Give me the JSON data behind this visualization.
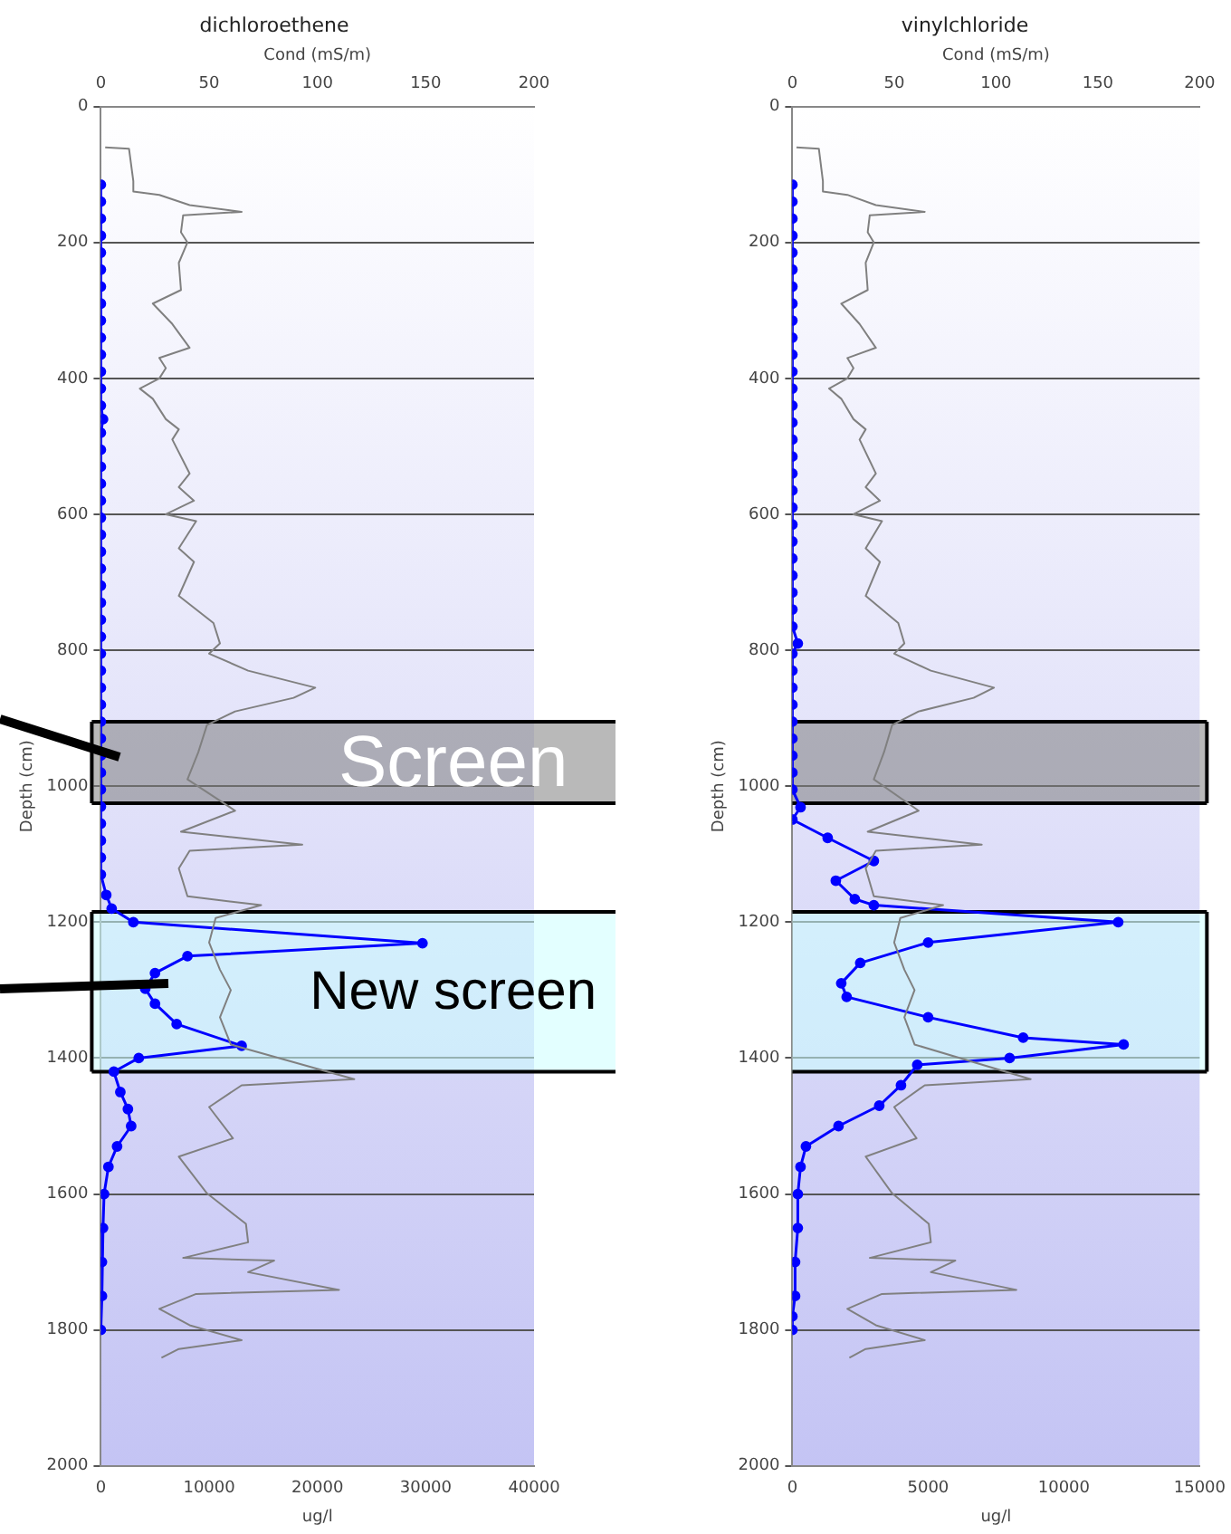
{
  "chart_data": [
    {
      "type": "line",
      "title": "dichloroethene",
      "xlabel": "ug/l",
      "x2label": "Cond (mS/m)",
      "ylabel": "Depth (cm)",
      "xlim": [
        0,
        40000
      ],
      "xticks": [
        0,
        10000,
        20000,
        30000,
        40000
      ],
      "x2lim": [
        0,
        200
      ],
      "x2ticks": [
        0,
        50,
        100,
        150,
        200
      ],
      "ylim": [
        2000,
        0
      ],
      "yticks": [
        0,
        200,
        400,
        600,
        800,
        1000,
        1200,
        1400,
        1600,
        1800,
        2000
      ],
      "grid": "y",
      "bands": [
        {
          "axis": "y",
          "from": 905,
          "to": 1025,
          "label": "Screen",
          "color": "#808080"
        },
        {
          "axis": "y",
          "from": 1185,
          "to": 1420,
          "label": "New screen",
          "color": "#ccffff"
        }
      ],
      "series": [
        {
          "axis": "x2",
          "color": "#808080",
          "marker": "none",
          "x": [
            2,
            13,
            15,
            15,
            27,
            41,
            65,
            38,
            37,
            40,
            36,
            37,
            24,
            33,
            41,
            27,
            30,
            27,
            18,
            24,
            30,
            36,
            33,
            41,
            36,
            43,
            30,
            44,
            36,
            43,
            36,
            52,
            55,
            50,
            68,
            99,
            89,
            62,
            49,
            45,
            40,
            62,
            37,
            93,
            41,
            36,
            40,
            74,
            53,
            50,
            55,
            60,
            55,
            60,
            117,
            65,
            50,
            61,
            36,
            49,
            67,
            68,
            38,
            80,
            68,
            110,
            44,
            27,
            41,
            65,
            36,
            28
          ],
          "values": [
            60,
            62,
            110,
            125,
            130,
            145,
            155,
            160,
            185,
            200,
            230,
            270,
            290,
            320,
            355,
            370,
            385,
            400,
            415,
            430,
            460,
            475,
            490,
            540,
            560,
            580,
            600,
            610,
            650,
            670,
            720,
            760,
            790,
            805,
            830,
            855,
            870,
            890,
            910,
            950,
            990,
            1036,
            1067,
            1086,
            1095,
            1121,
            1162,
            1175,
            1194,
            1230,
            1270,
            1300,
            1340,
            1380,
            1431,
            1440,
            1472,
            1518,
            1545,
            1599,
            1644,
            1671,
            1694,
            1698,
            1715,
            1741,
            1747,
            1769,
            1793,
            1815,
            1828,
            1841
          ]
        },
        {
          "color": "#0000ff",
          "marker": "circle",
          "x": [
            0,
            0,
            0,
            0,
            0,
            0,
            0,
            0,
            0,
            0,
            0,
            0,
            0,
            0,
            200,
            0,
            0,
            0,
            0,
            0,
            0,
            0,
            0,
            0,
            0,
            0,
            0,
            0,
            0,
            0,
            0,
            0,
            0,
            0,
            0,
            0,
            0,
            0,
            0,
            0,
            0,
            0,
            500,
            1000,
            3000,
            29700,
            8000,
            5000,
            4100,
            5000,
            7000,
            13000,
            3500,
            1200,
            1800,
            2500,
            2800,
            1500,
            700,
            300,
            200,
            100,
            100,
            0
          ],
          "values": [
            115,
            140,
            165,
            190,
            215,
            240,
            265,
            290,
            315,
            340,
            365,
            390,
            415,
            440,
            460,
            480,
            505,
            530,
            555,
            580,
            605,
            630,
            655,
            680,
            705,
            730,
            755,
            780,
            805,
            830,
            855,
            880,
            905,
            930,
            955,
            980,
            1005,
            1030,
            1055,
            1080,
            1105,
            1130,
            1160,
            1180,
            1200,
            1231,
            1250,
            1275,
            1298,
            1320,
            1350,
            1382,
            1400,
            1420,
            1450,
            1475,
            1500,
            1530,
            1560,
            1600,
            1650,
            1700,
            1750,
            1800
          ]
        }
      ]
    },
    {
      "type": "line",
      "title": "vinylchloride",
      "xlabel": "ug/l",
      "x2label": "Cond (mS/m)",
      "ylabel": "Depth (cm)",
      "xlim": [
        0,
        15000
      ],
      "xticks": [
        0,
        5000,
        10000,
        15000
      ],
      "x2lim": [
        0,
        200
      ],
      "x2ticks": [
        0,
        50,
        100,
        150,
        200
      ],
      "ylim": [
        2000,
        0
      ],
      "yticks": [
        0,
        200,
        400,
        600,
        800,
        1000,
        1200,
        1400,
        1600,
        1800,
        2000
      ],
      "grid": "y",
      "bands": [
        {
          "axis": "y",
          "from": 905,
          "to": 1025,
          "color": "#808080"
        },
        {
          "axis": "y",
          "from": 1185,
          "to": 1420,
          "color": "#ccffff"
        }
      ],
      "series": [
        {
          "axis": "x2",
          "color": "#808080",
          "marker": "none",
          "x": [
            2,
            13,
            15,
            15,
            27,
            41,
            65,
            38,
            37,
            40,
            36,
            37,
            24,
            33,
            41,
            27,
            30,
            27,
            18,
            24,
            30,
            36,
            33,
            41,
            36,
            43,
            30,
            44,
            36,
            43,
            36,
            52,
            55,
            50,
            68,
            99,
            89,
            62,
            49,
            45,
            40,
            62,
            37,
            93,
            41,
            36,
            40,
            74,
            53,
            50,
            55,
            60,
            55,
            60,
            117,
            65,
            50,
            61,
            36,
            49,
            67,
            68,
            38,
            80,
            68,
            110,
            44,
            27,
            41,
            65,
            36,
            28
          ],
          "values": [
            60,
            62,
            110,
            125,
            130,
            145,
            155,
            160,
            185,
            200,
            230,
            270,
            290,
            320,
            355,
            370,
            385,
            400,
            415,
            430,
            460,
            475,
            490,
            540,
            560,
            580,
            600,
            610,
            650,
            670,
            720,
            760,
            790,
            805,
            830,
            855,
            870,
            890,
            910,
            950,
            990,
            1036,
            1067,
            1086,
            1095,
            1121,
            1162,
            1175,
            1194,
            1230,
            1270,
            1300,
            1340,
            1380,
            1431,
            1440,
            1472,
            1518,
            1545,
            1599,
            1644,
            1671,
            1694,
            1698,
            1715,
            1741,
            1747,
            1769,
            1793,
            1815,
            1828,
            1841
          ]
        },
        {
          "color": "#0000ff",
          "marker": "circle",
          "x": [
            0,
            0,
            0,
            0,
            0,
            0,
            0,
            0,
            0,
            0,
            0,
            0,
            0,
            0,
            0,
            0,
            0,
            0,
            0,
            0,
            0,
            0,
            0,
            0,
            0,
            0,
            0,
            200,
            0,
            0,
            0,
            0,
            0,
            0,
            0,
            0,
            0,
            300,
            0,
            1300,
            3000,
            1600,
            2300,
            3000,
            12000,
            5000,
            2500,
            1800,
            2000,
            5000,
            8500,
            12200,
            8000,
            4600,
            4000,
            3200,
            1700,
            500,
            300,
            200,
            200,
            100,
            100,
            0,
            0
          ],
          "values": [
            115,
            140,
            165,
            190,
            215,
            240,
            265,
            290,
            315,
            340,
            365,
            390,
            415,
            440,
            465,
            490,
            515,
            540,
            565,
            590,
            615,
            640,
            665,
            690,
            715,
            740,
            765,
            790,
            805,
            830,
            855,
            880,
            905,
            930,
            955,
            980,
            1005,
            1031,
            1049,
            1076,
            1110,
            1139,
            1166,
            1175,
            1200,
            1230,
            1260,
            1290,
            1310,
            1340,
            1370,
            1380,
            1400,
            1410,
            1440,
            1470,
            1500,
            1530,
            1560,
            1600,
            1650,
            1700,
            1750,
            1780,
            1800
          ]
        }
      ]
    }
  ]
}
